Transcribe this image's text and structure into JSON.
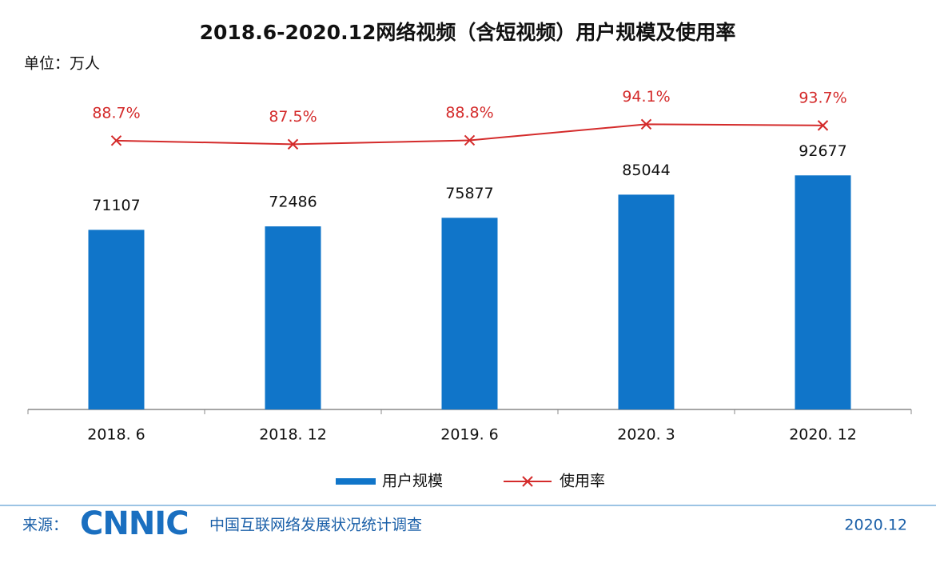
{
  "chart_data": {
    "type": "combo",
    "title": "2018.6-2020.12网络视频（含短视频）用户规模及使用率",
    "unit_label": "单位：万人",
    "categories": [
      "2018. 6",
      "2018. 12",
      "2019. 6",
      "2020. 3",
      "2020. 12"
    ],
    "series": [
      {
        "name": "用户规模",
        "type": "bar",
        "color": "#1075c9",
        "values": [
          71107,
          72486,
          75877,
          85044,
          92677
        ]
      },
      {
        "name": "使用率",
        "type": "line",
        "axis": "y2",
        "color": "#d42b2b",
        "marker": "x",
        "values": [
          88.7,
          87.5,
          88.8,
          94.1,
          93.7
        ],
        "value_labels": [
          "88.7%",
          "87.5%",
          "88.8%",
          "94.1%",
          "93.7%"
        ]
      }
    ],
    "ylim": [
      0,
      120000
    ],
    "y2lim": [
      0,
      100
    ],
    "legend": "bottom"
  },
  "footer": {
    "source_label": "来源：",
    "logo": "CNNIC",
    "source": "中国互联网络发展状况统计调查",
    "date": "2020.12"
  }
}
